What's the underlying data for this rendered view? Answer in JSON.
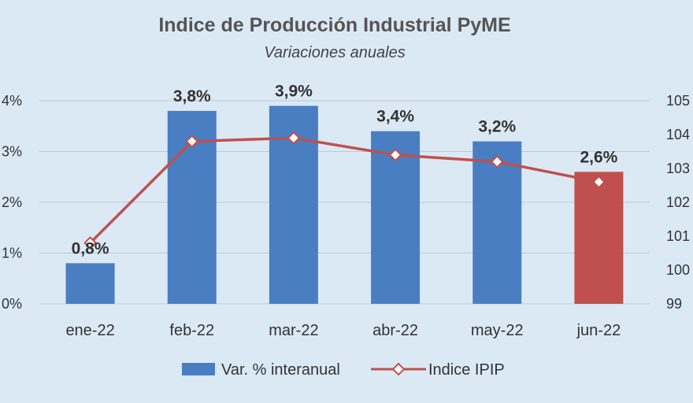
{
  "chart_data": {
    "type": "bar",
    "title": "Indice de Producción Industrial PyME",
    "subtitle": "Variaciones anuales",
    "categories": [
      "ene-22",
      "feb-22",
      "mar-22",
      "abr-22",
      "may-22",
      "jun-22"
    ],
    "series": [
      {
        "name": "Var. % interanual",
        "kind": "bar",
        "axis": "left",
        "values": [
          0.8,
          3.8,
          3.9,
          3.4,
          3.2,
          2.6
        ],
        "labels": [
          "0,8%",
          "3,8%",
          "3,9%",
          "3,4%",
          "3,2%",
          "2,6%"
        ],
        "colors": [
          "#4a7ec2",
          "#4a7ec2",
          "#4a7ec2",
          "#4a7ec2",
          "#4a7ec2",
          "#c0504d"
        ]
      },
      {
        "name": "Indice IPIP",
        "kind": "line",
        "axis": "right",
        "values": [
          100.8,
          103.8,
          103.9,
          103.4,
          103.2,
          102.6
        ],
        "color": "#c0504d"
      }
    ],
    "y_left": {
      "ylim": [
        0,
        4
      ],
      "ticks": [
        "0%",
        "1%",
        "2%",
        "3%",
        "4%"
      ]
    },
    "y_right": {
      "ylim": [
        99,
        105
      ],
      "ticks": [
        "99",
        "100",
        "101",
        "102",
        "103",
        "104",
        "105"
      ]
    },
    "grid": true,
    "legend_position": "bottom"
  }
}
